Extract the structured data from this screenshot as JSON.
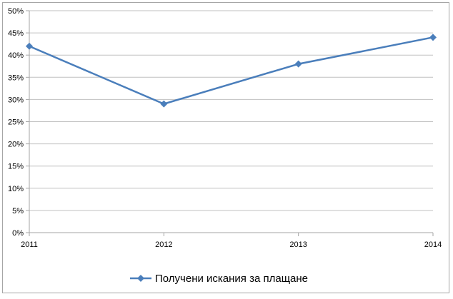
{
  "chart_data": {
    "type": "line",
    "x": [
      "2011",
      "2012",
      "2013",
      "2014"
    ],
    "series": [
      {
        "name": "Получени искания за плащане",
        "values": [
          42,
          29,
          38,
          44
        ],
        "color": "#4a7ebb"
      }
    ],
    "ylim": [
      0,
      50
    ],
    "y_ticks": [
      "0%",
      "5%",
      "10%",
      "15%",
      "20%",
      "25%",
      "30%",
      "35%",
      "40%",
      "45%",
      "50%"
    ],
    "y_unit": "percent",
    "grid": true,
    "legend": "bottom",
    "marker": "diamond",
    "colors": {
      "line": "#4a7ebb",
      "grid": "#c0c0c0",
      "axis": "#a6a6a6"
    }
  }
}
